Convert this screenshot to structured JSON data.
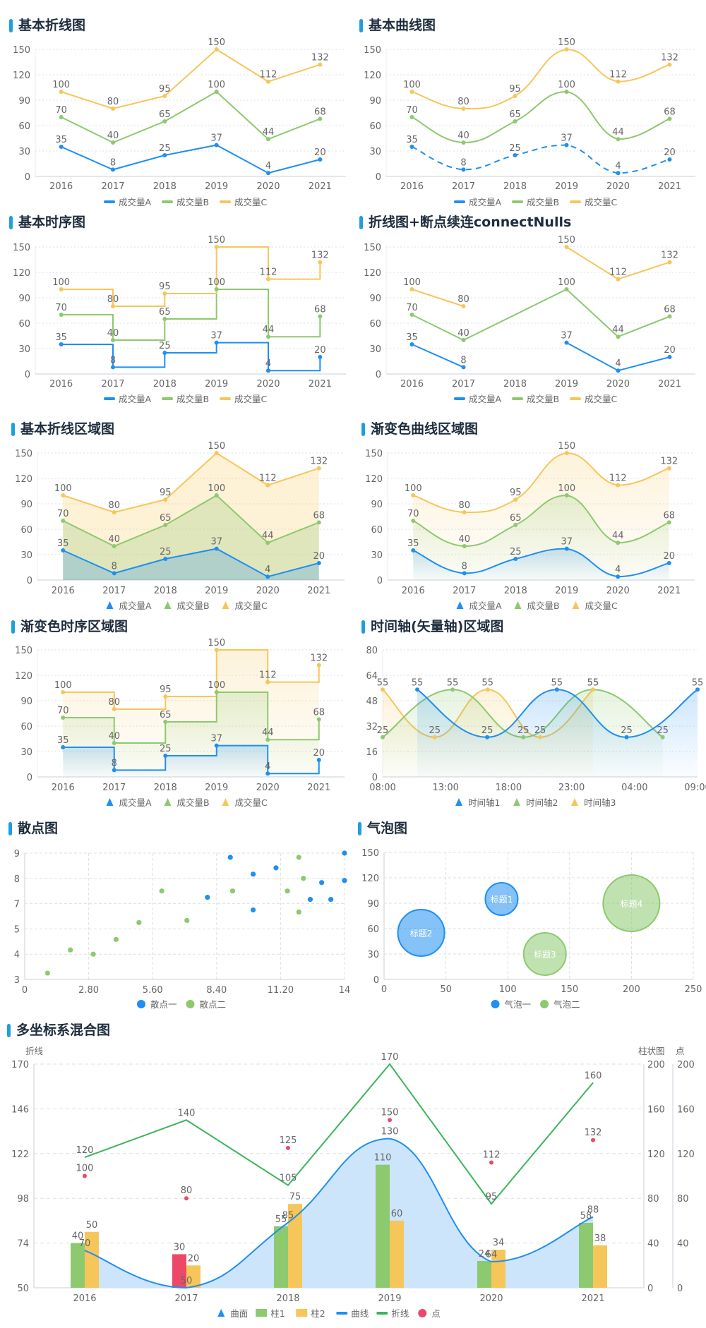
{
  "colors": {
    "accent": "#1e9fdc",
    "blue": "#1f8ff1",
    "green": "#8dc96f",
    "yellow": "#f6c65a",
    "red": "#ec4969",
    "line_green": "#3bb55b",
    "axis_text": "#666666",
    "title": "#1f2d3d"
  },
  "chart_data": [
    {
      "id": "c1",
      "type": "line",
      "title": "基本折线图",
      "categories": [
        "2016",
        "2017",
        "2018",
        "2019",
        "2020",
        "2021"
      ],
      "ylim": [
        0,
        150
      ],
      "yticks": [
        "0",
        "30",
        "60",
        "90",
        "120",
        "150"
      ],
      "grid": true,
      "legend": "bottom",
      "legend_icon": "line",
      "series": [
        {
          "name": "成交量A",
          "color": "blue",
          "values": [
            35,
            8,
            25,
            37,
            4,
            20
          ]
        },
        {
          "name": "成交量B",
          "color": "green",
          "values": [
            70,
            40,
            65,
            100,
            44,
            68
          ]
        },
        {
          "name": "成交量C",
          "color": "yellow",
          "values": [
            100,
            80,
            95,
            150,
            112,
            132
          ]
        }
      ]
    },
    {
      "id": "c2",
      "type": "line",
      "title": "基本曲线图",
      "smooth": true,
      "categories": [
        "2016",
        "2017",
        "2018",
        "2019",
        "2020",
        "2021"
      ],
      "ylim": [
        0,
        150
      ],
      "yticks": [
        "0",
        "30",
        "60",
        "90",
        "120",
        "150"
      ],
      "grid": true,
      "legend": "bottom",
      "legend_icon": "line",
      "series": [
        {
          "name": "成交量A",
          "color": "blue",
          "values": [
            35,
            8,
            25,
            37,
            4,
            20
          ],
          "dashed": true
        },
        {
          "name": "成交量B",
          "color": "green",
          "values": [
            70,
            40,
            65,
            100,
            44,
            68
          ]
        },
        {
          "name": "成交量C",
          "color": "yellow",
          "values": [
            100,
            80,
            95,
            150,
            112,
            132
          ]
        }
      ]
    },
    {
      "id": "c3",
      "type": "line",
      "title": "基本时序图",
      "step": true,
      "categories": [
        "2016",
        "2017",
        "2018",
        "2019",
        "2020",
        "2021"
      ],
      "ylim": [
        0,
        150
      ],
      "yticks": [
        "0",
        "30",
        "60",
        "90",
        "120",
        "150"
      ],
      "grid": true,
      "legend": "bottom",
      "legend_icon": "line",
      "series": [
        {
          "name": "成交量A",
          "color": "blue",
          "values": [
            35,
            8,
            25,
            37,
            4,
            20
          ]
        },
        {
          "name": "成交量B",
          "color": "green",
          "values": [
            70,
            40,
            65,
            100,
            44,
            68
          ]
        },
        {
          "name": "成交量C",
          "color": "yellow",
          "values": [
            100,
            80,
            95,
            150,
            112,
            132
          ]
        }
      ]
    },
    {
      "id": "c4",
      "type": "line",
      "title": "折线图+断点续连connectNulls",
      "categories": [
        "2016",
        "2017",
        "2018",
        "2019",
        "2020",
        "2021"
      ],
      "ylim": [
        0,
        150
      ],
      "yticks": [
        "0",
        "30",
        "60",
        "90",
        "120",
        "150"
      ],
      "grid": true,
      "legend": "bottom",
      "legend_icon": "line",
      "series": [
        {
          "name": "成交量A",
          "color": "blue",
          "values": [
            35,
            8,
            null,
            37,
            4,
            20
          ]
        },
        {
          "name": "成交量B",
          "color": "green",
          "values": [
            70,
            40,
            null,
            100,
            44,
            68
          ],
          "connectNulls": true
        },
        {
          "name": "成交量C",
          "color": "yellow",
          "values": [
            100,
            80,
            null,
            150,
            112,
            132
          ]
        }
      ]
    },
    {
      "id": "c5",
      "type": "area",
      "title": "基本折线区域图",
      "categories": [
        "2016",
        "2017",
        "2018",
        "2019",
        "2020",
        "2021"
      ],
      "ylim": [
        0,
        150
      ],
      "yticks": [
        "0",
        "30",
        "60",
        "90",
        "120",
        "150"
      ],
      "grid": true,
      "legend": "bottom",
      "legend_icon": "triangle",
      "series": [
        {
          "name": "成交量A",
          "color": "blue",
          "values": [
            35,
            8,
            25,
            37,
            4,
            20
          ]
        },
        {
          "name": "成交量B",
          "color": "green",
          "values": [
            70,
            40,
            65,
            100,
            44,
            68
          ]
        },
        {
          "name": "成交量C",
          "color": "yellow",
          "values": [
            100,
            80,
            95,
            150,
            112,
            132
          ]
        }
      ]
    },
    {
      "id": "c6",
      "type": "area",
      "title": "渐变色曲线区域图",
      "smooth": true,
      "gradient": true,
      "categories": [
        "2016",
        "2017",
        "2018",
        "2019",
        "2020",
        "2021"
      ],
      "ylim": [
        0,
        150
      ],
      "yticks": [
        "0",
        "30",
        "60",
        "90",
        "120",
        "150"
      ],
      "grid": true,
      "legend": "bottom",
      "legend_icon": "triangle",
      "series": [
        {
          "name": "成交量A",
          "color": "blue",
          "values": [
            35,
            8,
            25,
            37,
            4,
            20
          ]
        },
        {
          "name": "成交量B",
          "color": "green",
          "values": [
            70,
            40,
            65,
            100,
            44,
            68
          ]
        },
        {
          "name": "成交量C",
          "color": "yellow",
          "values": [
            100,
            80,
            95,
            150,
            112,
            132
          ]
        }
      ]
    },
    {
      "id": "c7",
      "type": "area",
      "title": "渐变色时序区域图",
      "step": true,
      "gradient": true,
      "categories": [
        "2016",
        "2017",
        "2018",
        "2019",
        "2020",
        "2021"
      ],
      "ylim": [
        0,
        150
      ],
      "yticks": [
        "0",
        "30",
        "60",
        "90",
        "120",
        "150"
      ],
      "grid": true,
      "legend": "bottom",
      "legend_icon": "triangle",
      "series": [
        {
          "name": "成交量A",
          "color": "blue",
          "values": [
            35,
            8,
            25,
            37,
            4,
            20
          ]
        },
        {
          "name": "成交量B",
          "color": "green",
          "values": [
            70,
            40,
            65,
            100,
            44,
            68
          ]
        },
        {
          "name": "成交量C",
          "color": "yellow",
          "values": [
            100,
            80,
            95,
            150,
            112,
            132
          ]
        }
      ]
    },
    {
      "id": "c8",
      "type": "area",
      "title": "时间轴(矢量轴)区域图",
      "smooth": true,
      "gradient": true,
      "time_axis": true,
      "xlim_hours": [
        0,
        25
      ],
      "xticks": [
        "08:00",
        "13:00",
        "18:00",
        "23:00",
        "04:00",
        "09:00"
      ],
      "ylim": [
        0,
        80
      ],
      "yticks": [
        "0",
        "16",
        "32",
        "48",
        "64",
        "80"
      ],
      "grid": true,
      "legend": "bottom",
      "legend_icon": "triangle",
      "series": [
        {
          "name": "时间轴1",
          "color": "blue",
          "points": [
            [
              "10:45",
              55
            ],
            [
              "16:18",
              25
            ],
            [
              "21:50",
              55
            ],
            [
              "03:22",
              25
            ],
            [
              "09:00",
              55
            ]
          ]
        },
        {
          "name": "时间轴2",
          "color": "green",
          "points": [
            [
              "08:00",
              25
            ],
            [
              "13:33",
              55
            ],
            [
              "19:10",
              25
            ],
            [
              "00:42",
              55
            ],
            [
              "06:14",
              25
            ]
          ]
        },
        {
          "name": "时间轴3",
          "color": "yellow",
          "points": [
            [
              "08:00",
              55
            ],
            [
              "12:08",
              25
            ],
            [
              "16:20",
              55
            ],
            [
              "20:30",
              25
            ],
            [
              "00:42",
              55
            ]
          ]
        }
      ]
    },
    {
      "id": "c9",
      "type": "scatter",
      "title": "散点图",
      "xlim": [
        0,
        14
      ],
      "xticks": [
        "0",
        "2.80",
        "5.60",
        "8.40",
        "11.20",
        "14"
      ],
      "ylim": [
        3,
        9
      ],
      "yticks": [
        "3",
        "4",
        "5",
        "7",
        "8",
        "9"
      ],
      "grid": true,
      "legend": "bottom",
      "legend_icon": "circle",
      "series": [
        {
          "name": "散点一",
          "color": "blue",
          "points": [
            [
              8.0,
              6.9
            ],
            [
              9.0,
              8.8
            ],
            [
              10.0,
              8.0
            ],
            [
              10.0,
              6.3
            ],
            [
              11.0,
              8.3
            ],
            [
              12.5,
              6.8
            ],
            [
              13.0,
              7.6
            ],
            [
              13.4,
              6.8
            ],
            [
              14.0,
              9.0
            ],
            [
              14.0,
              7.7
            ]
          ]
        },
        {
          "name": "散点二",
          "color": "green",
          "points": [
            [
              1.0,
              3.3
            ],
            [
              2.0,
              4.4
            ],
            [
              3.0,
              4.2
            ],
            [
              4.0,
              4.9
            ],
            [
              5.0,
              5.7
            ],
            [
              6.0,
              7.2
            ],
            [
              7.1,
              5.8
            ],
            [
              9.1,
              7.2
            ],
            [
              11.5,
              7.2
            ],
            [
              12.0,
              8.8
            ],
            [
              12.2,
              7.8
            ],
            [
              12.0,
              6.2
            ]
          ]
        }
      ]
    },
    {
      "id": "c10",
      "type": "scatter",
      "title": "气泡图",
      "bubble": true,
      "xlim": [
        0,
        250
      ],
      "xticks": [
        "0",
        "50",
        "100",
        "150",
        "200",
        "250"
      ],
      "ylim": [
        0,
        150
      ],
      "yticks": [
        "0",
        "30",
        "60",
        "90",
        "120",
        "150"
      ],
      "grid": true,
      "legend": "bottom",
      "legend_icon": "circle",
      "series": [
        {
          "name": "气泡一",
          "color": "blue",
          "points": [
            [
              95,
              95,
              23,
              "标题1"
            ],
            [
              30,
              55,
              33,
              "标题2"
            ]
          ]
        },
        {
          "name": "气泡二",
          "color": "green",
          "points": [
            [
              130,
              30,
              30,
              "标题3"
            ],
            [
              200,
              90,
              40,
              "标题4"
            ]
          ]
        }
      ]
    },
    {
      "id": "c11",
      "type": "mixed",
      "title": "多坐标系混合图",
      "categories": [
        "2016",
        "2017",
        "2018",
        "2019",
        "2020",
        "2021"
      ],
      "axes": {
        "left": {
          "name": "折线",
          "ylim": [
            50,
            170
          ],
          "yticks": [
            "50",
            "74",
            "98",
            "122",
            "146",
            "170"
          ]
        },
        "right1": {
          "name": "柱状图",
          "ylim": [
            0,
            200
          ],
          "yticks": [
            "0",
            "40",
            "80",
            "120",
            "160",
            "200"
          ]
        },
        "right2": {
          "name": "点",
          "ylim": [
            0,
            200
          ],
          "yticks": [
            "0",
            "40",
            "80",
            "120",
            "160",
            "200"
          ]
        }
      },
      "legend": "bottom",
      "series": [
        {
          "name": "曲面",
          "kind": "area",
          "color": "blue",
          "axis": "left",
          "values": [
            70,
            50,
            85,
            130,
            64,
            88
          ],
          "legend_icon": "triangle"
        },
        {
          "name": "柱1",
          "kind": "bar",
          "color": "green",
          "axis": "right1",
          "values": [
            40,
            30,
            55,
            110,
            24,
            58
          ],
          "highlight": {
            "index": 1,
            "color": "red"
          },
          "legend_icon": "rect"
        },
        {
          "name": "柱2",
          "kind": "bar",
          "color": "yellow",
          "axis": "right1",
          "values": [
            50,
            20,
            75,
            60,
            34,
            38
          ],
          "legend_icon": "rect"
        },
        {
          "name": "曲线",
          "kind": "curve",
          "color": "blue",
          "axis": "left",
          "values": [
            70,
            50,
            85,
            130,
            64,
            88
          ],
          "legend_icon": "line"
        },
        {
          "name": "折线",
          "kind": "line",
          "color": "line_green",
          "axis": "left",
          "values": [
            120,
            140,
            105,
            170,
            95,
            160
          ],
          "legend_icon": "line"
        },
        {
          "name": "点",
          "kind": "dot",
          "color": "red",
          "axis": "right2",
          "values": [
            100,
            80,
            125,
            150,
            112,
            132
          ],
          "legend_icon": "circle"
        }
      ]
    }
  ]
}
